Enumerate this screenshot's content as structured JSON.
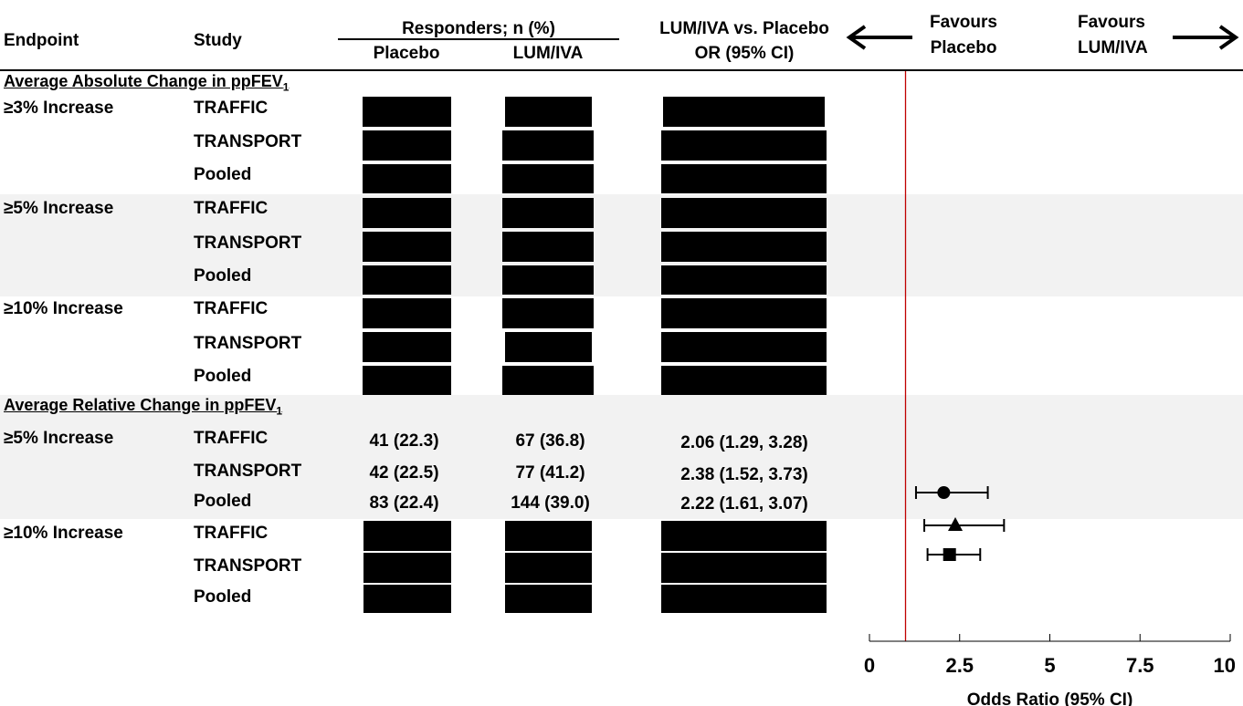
{
  "header": {
    "endpoint": "Endpoint",
    "study": "Study",
    "responders_group": "Responders; n (%)",
    "placebo": "Placebo",
    "lumiva": "LUM/IVA",
    "or_line1": "LUM/IVA vs. Placebo",
    "or_line2": "OR (95% CI)",
    "favours_placebo_1": "Favours",
    "favours_placebo_2": "Placebo",
    "favours_lumiva_1": "Favours",
    "favours_lumiva_2": "LUM/IVA"
  },
  "sections": {
    "absolute_prefix": "Average Absolute Change in ppFEV",
    "relative_prefix": "Average Relative Change in ppFEV",
    "sub": "1"
  },
  "rows": {
    "r0": {
      "endpoint": "≥3% Increase",
      "study": "TRAFFIC"
    },
    "r1": {
      "endpoint": "",
      "study": "TRANSPORT"
    },
    "r2": {
      "endpoint": "",
      "study": "Pooled"
    },
    "r3": {
      "endpoint": "≥5% Increase",
      "study": "TRAFFIC"
    },
    "r4": {
      "endpoint": "",
      "study": "TRANSPORT"
    },
    "r5": {
      "endpoint": "",
      "study": "Pooled"
    },
    "r6": {
      "endpoint": "≥10% Increase",
      "study": "TRAFFIC"
    },
    "r7": {
      "endpoint": "",
      "study": "TRANSPORT"
    },
    "r8": {
      "endpoint": "",
      "study": "Pooled"
    },
    "r9": {
      "endpoint": "≥5% Increase",
      "study": "TRAFFIC",
      "placebo": "41 (22.3)",
      "lumiva": "67 (36.8)",
      "or": "2.06 (1.29, 3.28)"
    },
    "r10": {
      "endpoint": "",
      "study": "TRANSPORT",
      "placebo": "42 (22.5)",
      "lumiva": "77 (41.2)",
      "or": "2.38 (1.52, 3.73)"
    },
    "r11": {
      "endpoint": "",
      "study": "Pooled",
      "placebo": "83 (22.4)",
      "lumiva": "144 (39.0)",
      "or": "2.22 (1.61, 3.07)"
    },
    "r12": {
      "endpoint": "≥10% Increase",
      "study": "TRAFFIC"
    },
    "r13": {
      "endpoint": "",
      "study": "TRANSPORT"
    },
    "r14": {
      "endpoint": "",
      "study": "Pooled"
    }
  },
  "chart_data": {
    "type": "scatter",
    "subtype": "forest-plot",
    "xlabel": "Odds Ratio (95% CI)",
    "xlim": [
      0,
      10
    ],
    "xticks": [
      0,
      2.5,
      5,
      7.5,
      10
    ],
    "xtick_labels": [
      "0",
      "2.5",
      "5",
      "7.5",
      "10"
    ],
    "reference_line": 1,
    "reference_color": "#c00000",
    "points": [
      {
        "label": "TRAFFIC",
        "or": 2.06,
        "lower": 1.29,
        "upper": 3.28,
        "marker": "circle"
      },
      {
        "label": "TRANSPORT",
        "or": 2.38,
        "lower": 1.52,
        "upper": 3.73,
        "marker": "triangle"
      },
      {
        "label": "Pooled",
        "or": 2.22,
        "lower": 1.61,
        "upper": 3.07,
        "marker": "square"
      }
    ]
  }
}
